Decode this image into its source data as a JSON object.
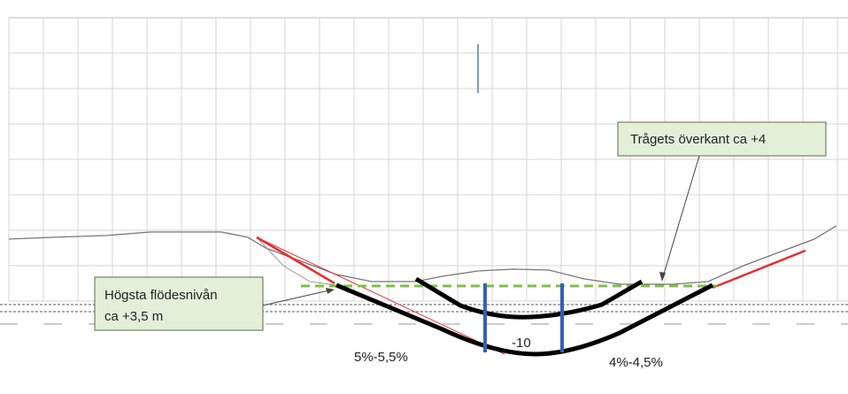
{
  "callouts": [
    {
      "lines": [
        "Trågets överkant ca +4"
      ]
    },
    {
      "lines": [
        "Högsta flödesnivån",
        "ca +3,5 m"
      ]
    }
  ],
  "labels": {
    "depth": "-10",
    "left_slope": "5%-5,5%",
    "right_slope": "4%-4,5%"
  }
}
